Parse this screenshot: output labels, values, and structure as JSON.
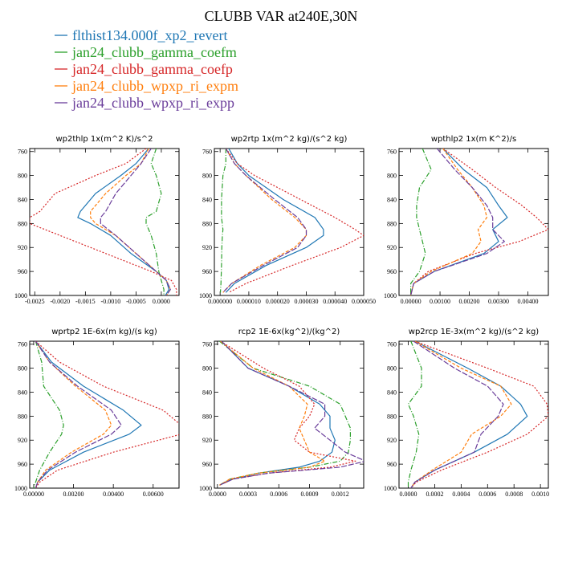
{
  "figure": {
    "title": "CLUBB VAR at240E,30N"
  },
  "legend": [
    {
      "name": "flthist134.000f_xp2_revert",
      "color": "#1f77b4",
      "dash": ""
    },
    {
      "name": "jan24_clubb_gamma_coefm",
      "color": "#2ca02c",
      "dash": "6,2,1,2"
    },
    {
      "name": "jan24_clubb_gamma_coefp",
      "color": "#d62728",
      "dash": "2,2"
    },
    {
      "name": "jan24_clubb_wpxp_ri_expm",
      "color": "#ff7f0e",
      "dash": "4,2"
    },
    {
      "name": "jan24_clubb_wpxp_ri_expp",
      "color": "#6a3d9a",
      "dash": "7,2"
    }
  ],
  "chart_data": [
    {
      "type": "line",
      "title": "wp2thlp  1x(m^2 K)/s^2",
      "xlim": [
        -0.0026,
        0.00035
      ],
      "xticks": [
        -0.0025,
        -0.002,
        -0.0015,
        -0.001,
        -0.0005,
        0.0
      ],
      "xtick_labels": [
        "-0.0025",
        "-0.0020",
        "-0.0015",
        "-0.0010",
        "-0.0005",
        "0.0000"
      ],
      "ylim": [
        1000,
        755
      ],
      "yticks": [
        760,
        800,
        840,
        880,
        920,
        960,
        1000
      ],
      "y": [
        755,
        780,
        800,
        830,
        860,
        870,
        880,
        900,
        930,
        960,
        975,
        990,
        1000
      ],
      "series": [
        {
          "values": [
            -0.00025,
            -0.0005,
            -0.0008,
            -0.0013,
            -0.0016,
            -0.00165,
            -0.0014,
            -0.001,
            -0.0006,
            -0.0001,
            0.0001,
            0.00015,
            8e-05
          ]
        },
        {
          "values": [
            -0.0001,
            -0.0002,
            -0.0001,
            0.0,
            -0.0001,
            -0.0003,
            -0.0003,
            -0.0002,
            -0.0001,
            -5e-05,
            0.0,
            5e-05,
            5e-05
          ]
        },
        {
          "values": [
            -0.0003,
            -0.0007,
            -0.0013,
            -0.0021,
            -0.0024,
            -0.0026,
            -0.0026,
            -0.002,
            -0.0011,
            -0.0002,
            0.0002,
            0.0003,
            0.0003
          ]
        },
        {
          "values": [
            -0.00025,
            -0.0004,
            -0.0007,
            -0.0011,
            -0.0014,
            -0.0014,
            -0.0013,
            -0.0009,
            -0.0005,
            -0.0001,
            0.0001,
            0.00018,
            0.0001
          ]
        },
        {
          "values": [
            -0.0002,
            -0.0004,
            -0.0006,
            -0.0009,
            -0.0011,
            -0.0012,
            -0.0012,
            -0.0009,
            -0.0005,
            -0.0001,
            0.0001,
            0.00018,
            0.0001
          ]
        }
      ]
    },
    {
      "type": "line",
      "title": "wp2rtp  1x(m^2 kg)/(s^2 kg)",
      "xlim": [
        -2e-06,
        5e-05
      ],
      "xticks": [
        0.0,
        1e-05,
        2e-05,
        3e-05,
        4e-05,
        5e-05
      ],
      "xtick_labels": [
        "0.000000",
        "0.000010",
        "0.000020",
        "0.000030",
        "0.000040",
        "0.000050"
      ],
      "ylim": [
        1000,
        755
      ],
      "yticks": [
        760,
        800,
        840,
        880,
        920,
        960,
        1000
      ],
      "y": [
        755,
        780,
        800,
        840,
        870,
        890,
        900,
        920,
        950,
        980,
        995
      ],
      "series": [
        {
          "values": [
            3e-06,
            6e-06,
            1e-05,
            2.2e-05,
            3.3e-05,
            3.6e-05,
            3.6e-05,
            3e-05,
            1.6e-05,
            5e-06,
            2e-06
          ]
        },
        {
          "values": [
            2e-06,
            2e-06,
            1e-06,
            5e-07,
            5e-07,
            1e-06,
            8e-07,
            6e-07,
            5e-07,
            3e-07,
            1e-07
          ]
        },
        {
          "values": [
            2e-06,
            6e-06,
            1.2e-05,
            2.8e-05,
            4e-05,
            4.7e-05,
            5e-05,
            4.2e-05,
            2.5e-05,
            9e-06,
            3e-06
          ]
        },
        {
          "values": [
            2e-06,
            5e-06,
            9e-06,
            1.8e-05,
            2.6e-05,
            3e-05,
            3e-05,
            2.6e-05,
            1.4e-05,
            4e-06,
            1e-06
          ]
        },
        {
          "values": [
            2e-06,
            5e-06,
            9e-06,
            1.9e-05,
            2.7e-05,
            3e-05,
            3e-05,
            2.7e-05,
            1.5e-05,
            4e-06,
            1e-06
          ]
        }
      ]
    },
    {
      "type": "line",
      "title": "wpthlp2  1x(m K^2)/s",
      "xlim": [
        -0.0004,
        0.0047
      ],
      "xticks": [
        0.0,
        0.001,
        0.002,
        0.003,
        0.004
      ],
      "xtick_labels": [
        "0.00000",
        "0.00100",
        "0.00200",
        "0.00300",
        "0.00400"
      ],
      "ylim": [
        1000,
        755
      ],
      "yticks": [
        760,
        800,
        840,
        880,
        920,
        960,
        1000
      ],
      "y": [
        755,
        790,
        820,
        850,
        870,
        890,
        910,
        930,
        960,
        980,
        1000
      ],
      "series": [
        {
          "values": [
            0.0011,
            0.0018,
            0.0026,
            0.003,
            0.0033,
            0.0028,
            0.003,
            0.0025,
            0.0008,
            0.0001,
            0.0
          ]
        },
        {
          "values": [
            0.0004,
            0.0007,
            0.0003,
            0.0002,
            0.0002,
            0.0003,
            0.0004,
            0.0005,
            0.0003,
            0.0,
            0.0
          ]
        },
        {
          "values": [
            0.0011,
            0.0021,
            0.0029,
            0.0038,
            0.0043,
            0.0047,
            0.0037,
            0.0022,
            0.0006,
            0.0001,
            0.0
          ]
        },
        {
          "values": [
            0.0011,
            0.0016,
            0.0021,
            0.0025,
            0.0026,
            0.0023,
            0.0024,
            0.0021,
            0.0007,
            0.0001,
            0.0
          ]
        },
        {
          "values": [
            0.0009,
            0.0015,
            0.0021,
            0.0026,
            0.0028,
            0.0028,
            0.0032,
            0.0026,
            0.0008,
            0.0001,
            0.0
          ]
        }
      ]
    },
    {
      "type": "line",
      "title": "wprtp2  1E-6x(m kg)/(s kg)",
      "xlim": [
        -0.0002,
        0.0073
      ],
      "xticks": [
        0.0,
        0.002,
        0.004,
        0.006
      ],
      "xtick_labels": [
        "0.00000",
        "0.00200",
        "0.00400",
        "0.00600"
      ],
      "ylim": [
        1000,
        755
      ],
      "yticks": [
        760,
        800,
        840,
        880,
        920,
        960,
        1000
      ],
      "y": [
        755,
        790,
        830,
        870,
        895,
        910,
        940,
        970,
        990,
        1000
      ],
      "series": [
        {
          "values": [
            0.0001,
            0.0009,
            0.0025,
            0.0045,
            0.0054,
            0.0048,
            0.0025,
            0.0008,
            0.0002,
            0.0001
          ]
        },
        {
          "values": [
            0.0001,
            0.0004,
            0.0005,
            0.0013,
            0.0015,
            0.0014,
            0.0008,
            0.0003,
            0.0001,
            0.0
          ]
        },
        {
          "values": [
            0.0001,
            0.0013,
            0.0035,
            0.0065,
            0.0074,
            0.0074,
            0.004,
            0.0012,
            0.0003,
            0.0001
          ]
        },
        {
          "values": [
            0.0001,
            0.0008,
            0.0021,
            0.0036,
            0.0039,
            0.0035,
            0.0019,
            0.0006,
            0.0002,
            0.0001
          ]
        },
        {
          "values": [
            0.0001,
            0.0008,
            0.0022,
            0.0039,
            0.0044,
            0.0039,
            0.0021,
            0.0007,
            0.0002,
            0.0001
          ]
        }
      ]
    },
    {
      "type": "line",
      "title": "rcp2  1E-6x(kg^2)/(kg^2)",
      "xlim": [
        -3e-05,
        0.00143
      ],
      "xticks": [
        0.0,
        0.0003,
        0.0006,
        0.0009,
        0.0012
      ],
      "xtick_labels": [
        "0.0000",
        "0.0003",
        "0.0006",
        "0.0009",
        "0.0012"
      ],
      "ylim": [
        1000,
        755
      ],
      "yticks": [
        760,
        800,
        840,
        880,
        920,
        960,
        1000
      ],
      "y": [
        755,
        800,
        830,
        860,
        880,
        900,
        920,
        940,
        955,
        965,
        975,
        985,
        995
      ],
      "series": [
        {
          "values": [
            4e-05,
            0.0003,
            0.0007,
            0.001,
            0.0011,
            0.0011,
            0.00115,
            0.00112,
            0.001,
            0.0008,
            0.0004,
            0.00015,
            2e-05
          ]
        },
        {
          "values": [
            2e-05,
            0.00035,
            0.0009,
            0.0012,
            0.00125,
            0.0013,
            0.0013,
            0.00128,
            0.0012,
            0.0009,
            0.0004,
            0.00012,
            2e-05
          ]
        },
        {
          "values": [
            3e-05,
            0.00045,
            0.0008,
            0.00095,
            0.0009,
            0.0008,
            0.00075,
            0.0009,
            0.00135,
            0.0011,
            0.0005,
            0.00015,
            2e-05
          ]
        },
        {
          "values": [
            3e-05,
            0.00035,
            0.0007,
            0.00088,
            0.00085,
            0.0008,
            0.00085,
            0.0009,
            0.00105,
            0.0009,
            0.0004,
            0.00012,
            2e-05
          ]
        },
        {
          "values": [
            4e-05,
            0.0003,
            0.0007,
            0.00105,
            0.00105,
            0.00095,
            0.0011,
            0.00125,
            0.00145,
            0.0012,
            0.0005,
            0.00015,
            2e-05
          ]
        }
      ]
    },
    {
      "type": "line",
      "title": "wp2rcp  1E-3x(m^2 kg)/(s^2 kg)",
      "xlim": [
        -7e-05,
        0.00106
      ],
      "xticks": [
        0.0,
        0.0002,
        0.0004,
        0.0006,
        0.0008,
        0.001
      ],
      "xtick_labels": [
        "0.0000",
        "0.0002",
        "0.0004",
        "0.0006",
        "0.0008",
        "0.0010"
      ],
      "ylim": [
        1000,
        755
      ],
      "yticks": [
        760,
        800,
        840,
        880,
        920,
        960,
        1000
      ],
      "y": [
        755,
        800,
        830,
        860,
        880,
        910,
        940,
        970,
        990,
        1000
      ],
      "series": [
        {
          "values": [
            5e-05,
            0.00045,
            0.0007,
            0.00085,
            0.0009,
            0.00075,
            0.0005,
            0.0002,
            5e-05,
            2e-05
          ]
        },
        {
          "values": [
            2e-05,
            0.0001,
            0.0001,
            0.0,
            4e-05,
            8e-05,
            6e-05,
            2e-05,
            0.0,
            0.0
          ]
        },
        {
          "values": [
            5e-05,
            0.0006,
            0.00095,
            0.00105,
            0.00106,
            0.0009,
            0.0006,
            0.00025,
            6e-05,
            2e-05
          ]
        },
        {
          "values": [
            5e-05,
            0.0004,
            0.0007,
            0.00078,
            0.0007,
            0.00048,
            0.0004,
            0.00018,
            5e-05,
            2e-05
          ]
        },
        {
          "values": [
            4e-05,
            0.00035,
            0.0006,
            0.00072,
            0.00068,
            0.00055,
            0.0005,
            0.0002,
            5e-05,
            2e-05
          ]
        }
      ]
    }
  ]
}
